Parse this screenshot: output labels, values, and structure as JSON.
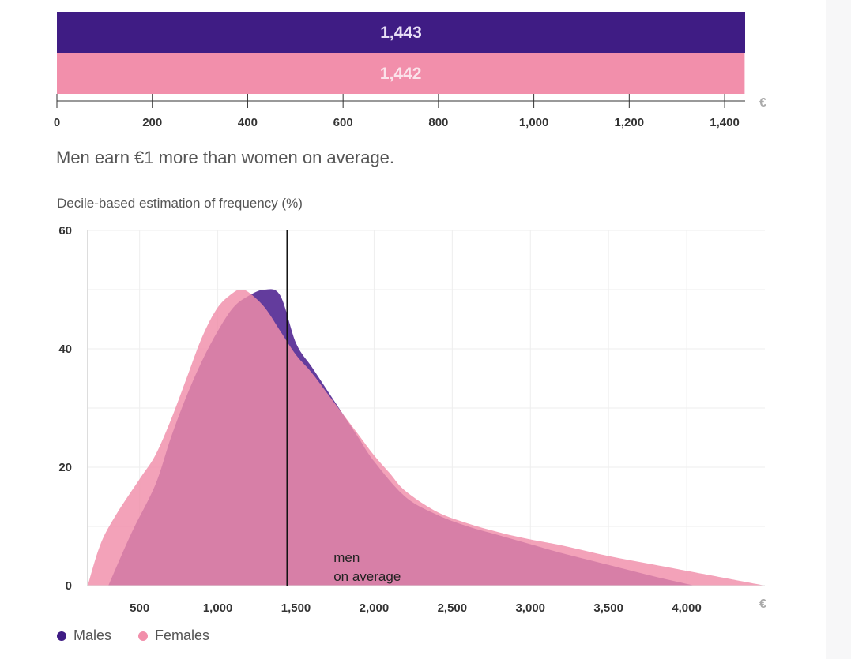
{
  "currency_unit": "€",
  "summary_text": "Men earn €1 more than women on average.",
  "colors": {
    "males": "#3f1c84",
    "females": "#f28fab",
    "males_area": "#5b3298",
    "females_area": "#f08daa",
    "male_bar_label": "#e6ddf5",
    "female_bar_label": "#fbe3ea"
  },
  "chart_data": [
    {
      "type": "bar",
      "orientation": "horizontal",
      "categories": [
        "Males",
        "Females"
      ],
      "values": [
        1443,
        1442
      ],
      "value_labels": [
        "1,443",
        "1,442"
      ],
      "xlim": [
        0,
        1443
      ],
      "x_ticks": [
        0,
        200,
        400,
        600,
        800,
        1000,
        1200,
        1400
      ],
      "x_tick_labels": [
        "0",
        "200",
        "400",
        "600",
        "800",
        "1,000",
        "1,200",
        "1,400"
      ],
      "x_unit": "€",
      "grid": false
    },
    {
      "type": "area",
      "title": "Decile-based estimation of frequency (%)",
      "x_unit": "€",
      "xlim": [
        168,
        4500
      ],
      "ylim": [
        0,
        60
      ],
      "x_ticks": [
        500,
        1000,
        1500,
        2000,
        2500,
        3000,
        3500,
        4000
      ],
      "x_tick_labels": [
        "500",
        "1,000",
        "1,500",
        "2,000",
        "2,500",
        "3,000",
        "3,500",
        "4,000"
      ],
      "y_ticks": [
        0,
        20,
        40,
        60
      ],
      "y_tick_labels": [
        "0",
        "20",
        "40",
        "60"
      ],
      "grid": true,
      "series": [
        {
          "name": "Males",
          "x": [
            300,
            450,
            600,
            700,
            800,
            900,
            1000,
            1100,
            1200,
            1300,
            1400,
            1500,
            1600,
            1700,
            1800,
            1900,
            2000,
            2200,
            2400,
            2600,
            2800,
            3000,
            3200,
            3500,
            3800,
            4050
          ],
          "y": [
            0,
            9,
            17,
            25,
            32,
            38,
            43,
            47,
            49,
            50,
            49,
            41,
            37,
            33,
            29,
            25,
            21,
            15,
            12,
            10,
            8.5,
            7,
            5.5,
            3.5,
            1.5,
            0
          ]
        },
        {
          "name": "Females",
          "x": [
            168,
            250,
            350,
            500,
            600,
            700,
            800,
            900,
            1000,
            1100,
            1150,
            1200,
            1300,
            1400,
            1500,
            1600,
            1700,
            1800,
            1900,
            2000,
            2100,
            2200,
            2400,
            2600,
            2800,
            3000,
            3200,
            3500,
            3800,
            4100,
            4500
          ],
          "y": [
            0,
            7,
            12,
            18,
            22,
            28,
            35,
            42,
            47,
            49.5,
            50,
            49.5,
            47,
            43,
            39,
            36,
            32.5,
            29,
            25.5,
            22,
            19,
            16,
            12.5,
            10.5,
            9,
            7.8,
            6.8,
            5,
            3.5,
            2,
            0
          ]
        }
      ],
      "marker": {
        "x": 1443,
        "label_lines": [
          "men",
          "on average"
        ]
      }
    }
  ]
}
